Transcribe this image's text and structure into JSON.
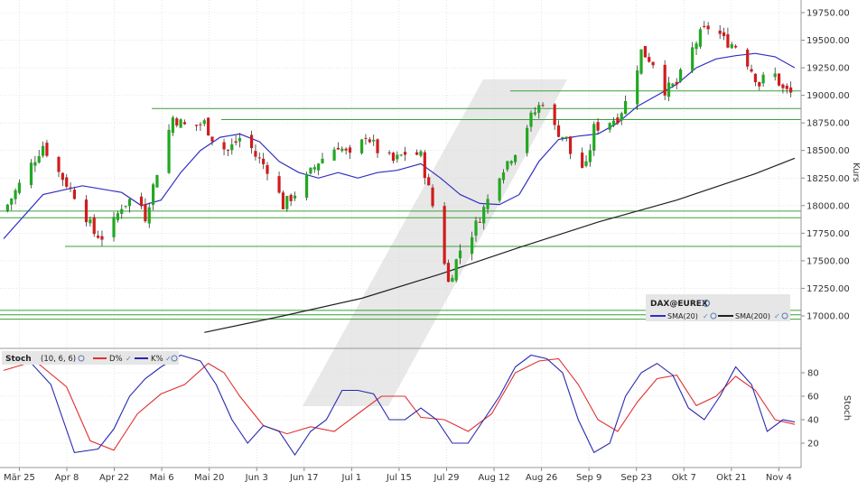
{
  "chart_data": [
    {
      "type": "candlestick",
      "instrument": "DAX@EUREX",
      "ylabel": "Kurs",
      "ylim": [
        16850,
        19850
      ],
      "y_ticks": [
        "17000.00",
        "17250.00",
        "17500.00",
        "17750.00",
        "18000.00",
        "18250.00",
        "18500.00",
        "18750.00",
        "19000.00",
        "19250.00",
        "19500.00",
        "19750.00"
      ],
      "x_tick_labels": [
        "Mär 25",
        "Apr 8",
        "Apr 22",
        "Mai 6",
        "Mai 20",
        "Jun 3",
        "Jun 17",
        "Jul 1",
        "Jul 15",
        "Jul 29",
        "Aug 12",
        "Aug 26",
        "Sep 9",
        "Sep 23",
        "Okt 7",
        "Okt 21",
        "Nov 4"
      ],
      "legend": {
        "title": "DAX@EUREX",
        "series": [
          "SMA(20)",
          "SMA(200)"
        ]
      },
      "colors": {
        "up": "#22a822",
        "down": "#d01c1c",
        "sma20": "#3030c0",
        "sma200": "#202020",
        "support": "#3aa03a"
      },
      "support_lines": [
        {
          "level": 18880,
          "from_day": 0
        },
        {
          "level": 18780,
          "from_day": 0
        },
        {
          "level": 19040,
          "from_day": 0
        },
        {
          "level": 17950,
          "from_day": 0
        },
        {
          "level": 17890,
          "from_day": 0
        },
        {
          "level": 17630,
          "from_day": 0
        },
        {
          "level": 17050,
          "from_day": 0
        },
        {
          "level": 17010,
          "from_day": 0
        },
        {
          "level": 16970,
          "from_day": 0
        }
      ],
      "close_path": [
        [
          0,
          17950
        ],
        [
          5,
          18250
        ],
        [
          10,
          18550
        ],
        [
          14,
          18300
        ],
        [
          19,
          18050
        ],
        [
          23,
          17750
        ],
        [
          26,
          17700
        ],
        [
          30,
          18000
        ],
        [
          34,
          18100
        ],
        [
          36,
          17900
        ],
        [
          40,
          18450
        ],
        [
          43,
          18800
        ],
        [
          47,
          18700
        ],
        [
          51,
          18750
        ],
        [
          54,
          18550
        ],
        [
          57,
          18500
        ],
        [
          61,
          18650
        ],
        [
          64,
          18450
        ],
        [
          68,
          18300
        ],
        [
          71,
          18000
        ],
        [
          75,
          18150
        ],
        [
          80,
          18400
        ],
        [
          85,
          18550
        ],
        [
          89,
          18400
        ],
        [
          92,
          18650
        ],
        [
          95,
          18500
        ],
        [
          99,
          18400
        ],
        [
          103,
          18500
        ],
        [
          106,
          18450
        ],
        [
          108,
          18150
        ],
        [
          111,
          17700
        ],
        [
          113,
          17300
        ],
        [
          116,
          17600
        ],
        [
          119,
          17750
        ],
        [
          123,
          18050
        ],
        [
          126,
          18300
        ],
        [
          130,
          18500
        ],
        [
          134,
          18800
        ],
        [
          137,
          18950
        ],
        [
          140,
          18700
        ],
        [
          143,
          18600
        ],
        [
          145,
          18350
        ],
        [
          148,
          18350
        ],
        [
          150,
          18700
        ],
        [
          153,
          18750
        ],
        [
          156,
          18800
        ],
        [
          159,
          19000
        ],
        [
          162,
          19400
        ],
        [
          165,
          19300
        ],
        [
          168,
          19050
        ],
        [
          171,
          19100
        ],
        [
          174,
          19350
        ],
        [
          177,
          19550
        ],
        [
          180,
          19650
        ],
        [
          183,
          19500
        ],
        [
          186,
          19450
        ],
        [
          189,
          19300
        ],
        [
          192,
          19100
        ],
        [
          195,
          19250
        ],
        [
          198,
          19050
        ],
        [
          201,
          19000
        ]
      ],
      "sma20_path": [
        [
          0,
          17700
        ],
        [
          10,
          18100
        ],
        [
          20,
          18180
        ],
        [
          30,
          18120
        ],
        [
          35,
          18000
        ],
        [
          40,
          18050
        ],
        [
          45,
          18300
        ],
        [
          50,
          18500
        ],
        [
          55,
          18620
        ],
        [
          60,
          18650
        ],
        [
          65,
          18580
        ],
        [
          70,
          18400
        ],
        [
          75,
          18300
        ],
        [
          80,
          18250
        ],
        [
          85,
          18300
        ],
        [
          90,
          18250
        ],
        [
          95,
          18300
        ],
        [
          100,
          18320
        ],
        [
          106,
          18380
        ],
        [
          111,
          18250
        ],
        [
          116,
          18100
        ],
        [
          121,
          18020
        ],
        [
          126,
          18010
        ],
        [
          131,
          18100
        ],
        [
          136,
          18400
        ],
        [
          141,
          18600
        ],
        [
          146,
          18630
        ],
        [
          151,
          18650
        ],
        [
          156,
          18750
        ],
        [
          161,
          18900
        ],
        [
          166,
          19000
        ],
        [
          171,
          19100
        ],
        [
          176,
          19250
        ],
        [
          181,
          19330
        ],
        [
          186,
          19360
        ],
        [
          191,
          19380
        ],
        [
          196,
          19350
        ],
        [
          201,
          19250
        ]
      ],
      "sma200_path": [
        [
          51,
          16850
        ],
        [
          71,
          17000
        ],
        [
          91,
          17160
        ],
        [
          111,
          17380
        ],
        [
          131,
          17620
        ],
        [
          151,
          17850
        ],
        [
          171,
          18050
        ],
        [
          191,
          18290
        ],
        [
          201,
          18430
        ]
      ]
    },
    {
      "type": "line",
      "name": "Stoch",
      "params": "(10, 6, 6)",
      "ylabel": "Stoch",
      "ylim": [
        0,
        100
      ],
      "y_ticks": [
        "20",
        "40",
        "60",
        "80"
      ],
      "series": [
        {
          "name": "D%",
          "color": "#e03030",
          "points": [
            [
              0,
              82
            ],
            [
              8,
              90
            ],
            [
              16,
              68
            ],
            [
              22,
              22
            ],
            [
              28,
              14
            ],
            [
              34,
              45
            ],
            [
              40,
              62
            ],
            [
              46,
              70
            ],
            [
              52,
              88
            ],
            [
              56,
              80
            ],
            [
              60,
              60
            ],
            [
              66,
              35
            ],
            [
              72,
              28
            ],
            [
              78,
              34
            ],
            [
              84,
              30
            ],
            [
              90,
              45
            ],
            [
              96,
              60
            ],
            [
              102,
              60
            ],
            [
              106,
              42
            ],
            [
              112,
              40
            ],
            [
              118,
              30
            ],
            [
              124,
              45
            ],
            [
              130,
              80
            ],
            [
              136,
              90
            ],
            [
              141,
              92
            ],
            [
              146,
              70
            ],
            [
              151,
              40
            ],
            [
              156,
              30
            ],
            [
              161,
              55
            ],
            [
              166,
              75
            ],
            [
              171,
              78
            ],
            [
              176,
              52
            ],
            [
              181,
              60
            ],
            [
              186,
              77
            ],
            [
              191,
              65
            ],
            [
              196,
              40
            ],
            [
              201,
              36
            ]
          ]
        },
        {
          "name": "K%",
          "color": "#2828b0",
          "points": [
            [
              0,
              90
            ],
            [
              6,
              92
            ],
            [
              12,
              70
            ],
            [
              18,
              12
            ],
            [
              24,
              15
            ],
            [
              28,
              32
            ],
            [
              32,
              60
            ],
            [
              36,
              75
            ],
            [
              40,
              85
            ],
            [
              45,
              95
            ],
            [
              50,
              90
            ],
            [
              54,
              70
            ],
            [
              58,
              40
            ],
            [
              62,
              20
            ],
            [
              66,
              35
            ],
            [
              70,
              30
            ],
            [
              74,
              10
            ],
            [
              78,
              30
            ],
            [
              82,
              40
            ],
            [
              86,
              65
            ],
            [
              90,
              65
            ],
            [
              94,
              62
            ],
            [
              98,
              40
            ],
            [
              102,
              40
            ],
            [
              106,
              50
            ],
            [
              110,
              40
            ],
            [
              114,
              20
            ],
            [
              118,
              20
            ],
            [
              122,
              40
            ],
            [
              126,
              60
            ],
            [
              130,
              85
            ],
            [
              134,
              95
            ],
            [
              138,
              92
            ],
            [
              142,
              80
            ],
            [
              146,
              40
            ],
            [
              150,
              12
            ],
            [
              154,
              20
            ],
            [
              158,
              60
            ],
            [
              162,
              80
            ],
            [
              166,
              88
            ],
            [
              170,
              78
            ],
            [
              174,
              50
            ],
            [
              178,
              40
            ],
            [
              182,
              60
            ],
            [
              186,
              85
            ],
            [
              190,
              70
            ],
            [
              194,
              30
            ],
            [
              198,
              40
            ],
            [
              201,
              38
            ]
          ]
        }
      ]
    }
  ]
}
